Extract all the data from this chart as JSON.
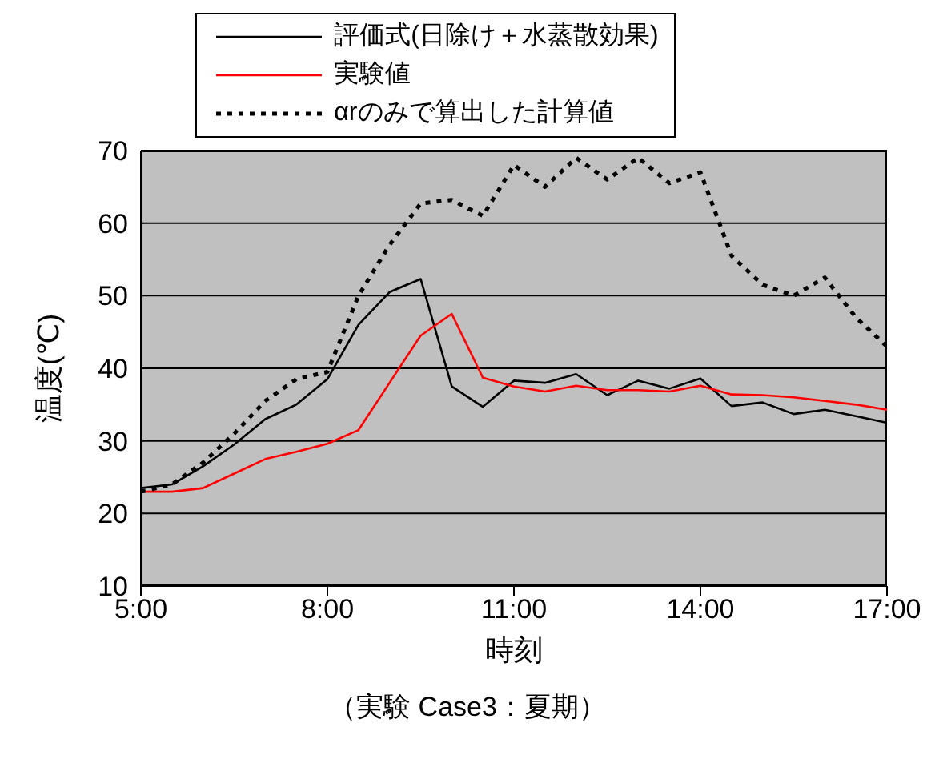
{
  "chart_data": {
    "type": "line",
    "xlabel": "時刻",
    "ylabel": "温度(℃)",
    "annotations": [
      "（実験 Case3：夏期）"
    ],
    "x": [
      5,
      5.5,
      6,
      6.5,
      7,
      7.5,
      8,
      8.5,
      9,
      9.5,
      10,
      10.5,
      11,
      11.5,
      12,
      12.5,
      13,
      13.5,
      14,
      14.5,
      15,
      15.5,
      16,
      16.5,
      17
    ],
    "xlim": [
      5,
      17
    ],
    "xticks": [
      {
        "value": 5,
        "label": "5:00"
      },
      {
        "value": 8,
        "label": "8:00"
      },
      {
        "value": 11,
        "label": "11:00"
      },
      {
        "value": 14,
        "label": "14:00"
      },
      {
        "value": 17,
        "label": "17:00"
      }
    ],
    "ylim": [
      10,
      70
    ],
    "yticks": [
      10,
      20,
      30,
      40,
      50,
      60,
      70
    ],
    "grid": "y",
    "legend": "top",
    "marker": "none",
    "series": [
      {
        "name": "評価式(日除け＋水蒸散効果)",
        "color": "#000000",
        "line_style": "solid",
        "values": [
          23.5,
          24,
          26.5,
          29.5,
          33,
          35,
          38.5,
          46,
          50.5,
          52.3,
          37.5,
          34.7,
          38.3,
          38,
          39.2,
          36.3,
          38.3,
          37.2,
          38.6,
          34.8,
          35.3,
          33.7,
          34.3,
          33.4,
          32.5
        ]
      },
      {
        "name": "実験値",
        "color": "#ff0000",
        "line_style": "solid",
        "values": [
          23,
          23,
          23.5,
          25.5,
          27.5,
          28.5,
          29.6,
          31.5,
          38,
          44.5,
          47.5,
          38.7,
          37.5,
          36.8,
          37.6,
          37,
          37,
          36.8,
          37.6,
          36.4,
          36.3,
          36,
          35.5,
          35,
          34.3
        ]
      },
      {
        "name": "αrのみで算出した計算値",
        "color": "#000000",
        "line_style": "dotted",
        "values": [
          23,
          24,
          27,
          31,
          35.5,
          38.5,
          39.5,
          50,
          57,
          62.7,
          63.2,
          61,
          68,
          65,
          69,
          66,
          69,
          65.5,
          67,
          55.5,
          51.5,
          50,
          52.5,
          47,
          43
        ]
      }
    ]
  }
}
